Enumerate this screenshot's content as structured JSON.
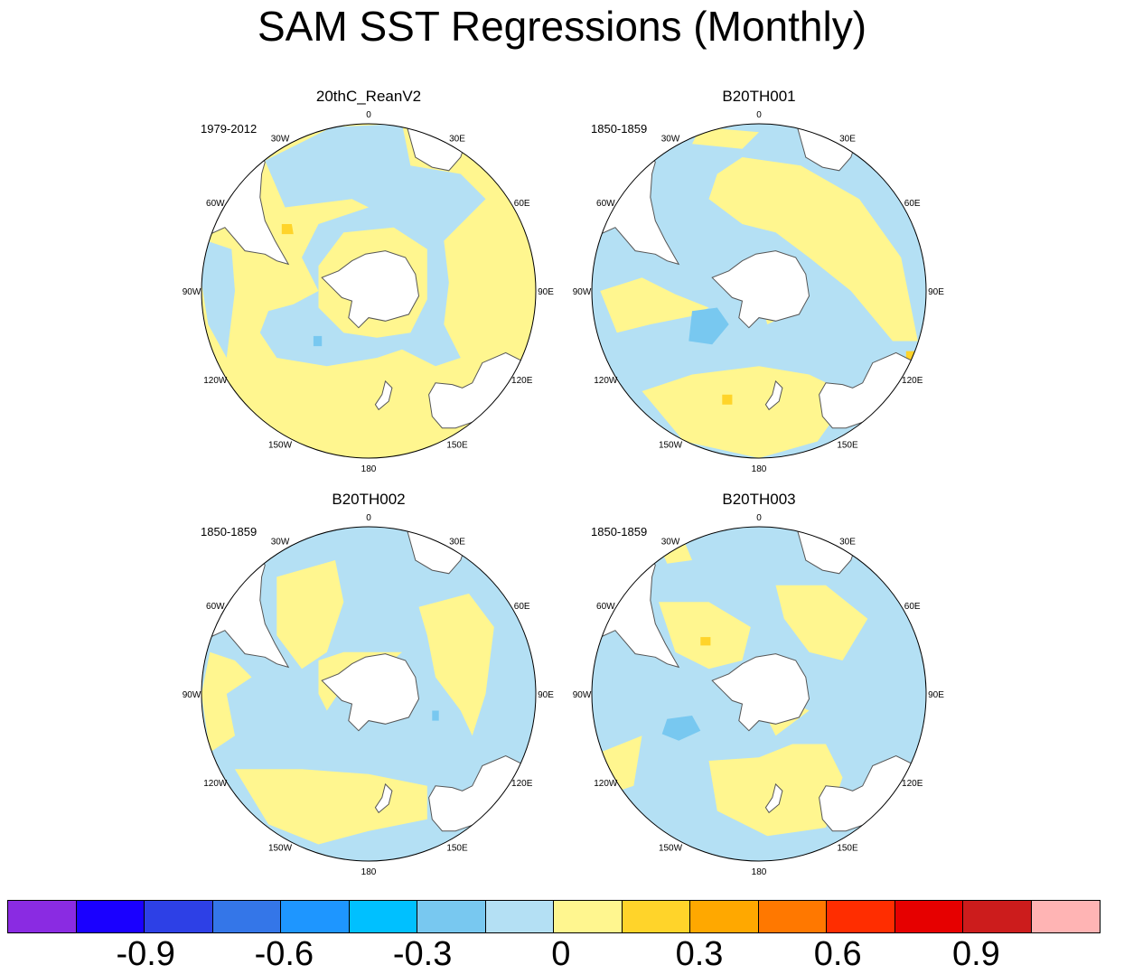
{
  "title": "SAM SST Regressions (Monthly)",
  "panels": [
    {
      "title": "20thC_ReanV2",
      "period": "1979-2012"
    },
    {
      "title": "B20TH001",
      "period": "1850-1859"
    },
    {
      "title": "B20TH002",
      "period": "1850-1859"
    },
    {
      "title": "B20TH003",
      "period": "1850-1859"
    }
  ],
  "lon_labels": [
    "0",
    "30E",
    "60E",
    "90E",
    "120E",
    "150E",
    "180",
    "150W",
    "120W",
    "90W",
    "60W",
    "30W"
  ],
  "colorbar": {
    "colors": [
      "#8a2be2",
      "#1a00ff",
      "#2d40e6",
      "#3476e8",
      "#1e96ff",
      "#00c0ff",
      "#78c8f0",
      "#b4e0f4",
      "#fff68f",
      "#ffd42a",
      "#ffa800",
      "#ff7800",
      "#ff2d00",
      "#e60000",
      "#cc1c1c",
      "#ffb4b4"
    ],
    "tick_labels": [
      "-0.9",
      "-0.6",
      "-0.3",
      "0",
      "0.3",
      "0.6",
      "0.9"
    ]
  },
  "chart_data": {
    "type": "heatmap",
    "title": "SAM SST Regressions (Monthly)",
    "projection": "south polar stereographic",
    "levels": [
      -1.05,
      -0.9,
      -0.75,
      -0.6,
      -0.45,
      -0.3,
      -0.15,
      0,
      0.15,
      0.3,
      0.45,
      0.6,
      0.75,
      0.9,
      1.05
    ],
    "panels": [
      {
        "name": "20thC_ReanV2",
        "period": "1979-2012"
      },
      {
        "name": "B20TH001",
        "period": "1850-1859"
      },
      {
        "name": "B20TH002",
        "period": "1850-1859"
      },
      {
        "name": "B20TH003",
        "period": "1850-1859"
      }
    ]
  }
}
